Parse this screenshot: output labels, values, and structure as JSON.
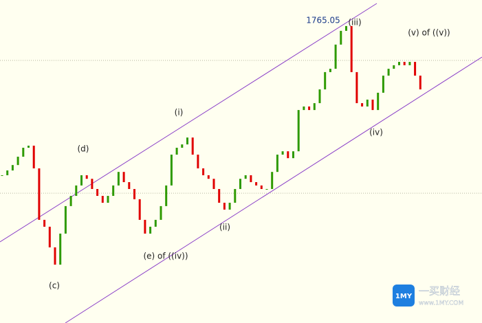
{
  "chart_data": {
    "type": "candlestick",
    "closes": [
      1690.9,
      1693.2,
      1695.8,
      1699.8,
      1704.1,
      1705.1,
      1694.2,
      1669.5,
      1666.2,
      1656.3,
      1648.0,
      1662.9,
      1676.1,
      1681.0,
      1686.0,
      1690.9,
      1689.2,
      1684.3,
      1681.0,
      1677.7,
      1681.0,
      1686.0,
      1692.5,
      1687.6,
      1684.3,
      1679.4,
      1669.5,
      1662.9,
      1666.2,
      1669.5,
      1676.1,
      1686.0,
      1700.8,
      1704.1,
      1705.7,
      1709.0,
      1700.8,
      1694.2,
      1690.9,
      1689.2,
      1684.3,
      1677.7,
      1674.4,
      1677.7,
      1684.3,
      1689.2,
      1690.9,
      1687.6,
      1686.0,
      1684.3,
      1684.3,
      1692.5,
      1700.8,
      1702.4,
      1699.1,
      1702.4,
      1722.2,
      1723.9,
      1722.2,
      1725.5,
      1732.1,
      1740.4,
      1742.0,
      1753.6,
      1760.2,
      1762.5,
      1740.4,
      1725.5,
      1723.9,
      1727.2,
      1722.2,
      1730.5,
      1738.7,
      1742.0,
      1743.7,
      1745.3,
      1743.7,
      1745.3,
      1738.7,
      1732.1
    ],
    "up_color": "#2e9a00",
    "down_color": "#e00000",
    "ylim": [
      1620,
      1775
    ],
    "grid_levels": [
      1746,
      1682.3
    ],
    "high": 1765.05,
    "annotations": [
      "(c)",
      "(d)",
      "(e) of ((iv))",
      "(i)",
      "(ii)",
      "(iii)",
      "(iv)",
      "(v) of ((v))"
    ],
    "watermark": {
      "logo": "1MY",
      "name": "一买财经",
      "site": "www.1MY.COM"
    }
  }
}
